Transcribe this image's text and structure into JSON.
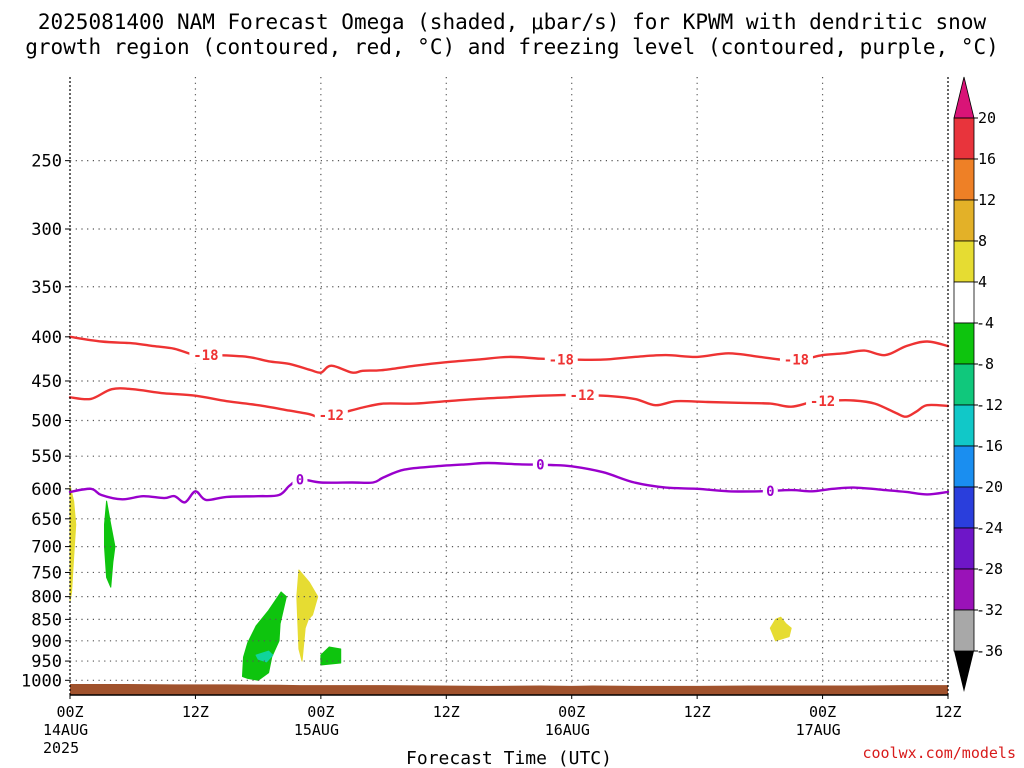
{
  "title_line1": "2025081400 NAM Forecast Omega (shaded, μbar/s) for KPWM with dendritic snow",
  "title_line2": "growth region (contoured, red, °C) and freezing level (contoured, purple, °C)",
  "credit": "coolwx.com/models",
  "chart_data": {
    "type": "contour",
    "title": "2025081400 NAM Forecast Omega (shaded, μbar/s) for KPWM with dendritic snow growth region (contoured, red, °C) and freezing level (contoured, purple, °C)",
    "xlabel": "Forecast Time (UTC)",
    "ylabel": "",
    "x_range_hours": [
      0,
      84
    ],
    "y_range_hPa": [
      200,
      1040
    ],
    "y_scale": "log",
    "grid": true,
    "x_ticks": [
      {
        "hour": 0,
        "line1": "00Z",
        "line2": "14AUG",
        "line3": "2025"
      },
      {
        "hour": 12,
        "line1": "12Z",
        "line2": "",
        "line3": ""
      },
      {
        "hour": 24,
        "line1": "00Z",
        "line2": "15AUG",
        "line3": ""
      },
      {
        "hour": 36,
        "line1": "12Z",
        "line2": "",
        "line3": ""
      },
      {
        "hour": 48,
        "line1": "00Z",
        "line2": "16AUG",
        "line3": ""
      },
      {
        "hour": 60,
        "line1": "12Z",
        "line2": "",
        "line3": ""
      },
      {
        "hour": 72,
        "line1": "00Z",
        "line2": "17AUG",
        "line3": ""
      },
      {
        "hour": 84,
        "line1": "12Z",
        "line2": "",
        "line3": ""
      }
    ],
    "y_ticks": [
      250,
      300,
      350,
      400,
      450,
      500,
      550,
      600,
      650,
      700,
      750,
      800,
      850,
      900,
      950,
      1000
    ],
    "contours": [
      {
        "label": "-18",
        "color": "#ee3333",
        "label_hours": [
          13,
          47,
          69.5
        ],
        "points": [
          [
            0,
            400
          ],
          [
            3,
            405
          ],
          [
            6,
            407
          ],
          [
            8,
            410
          ],
          [
            10,
            413
          ],
          [
            12,
            420
          ],
          [
            14,
            420
          ],
          [
            17,
            422
          ],
          [
            19,
            427
          ],
          [
            21,
            430
          ],
          [
            23,
            437
          ],
          [
            24,
            440
          ],
          [
            25,
            432
          ],
          [
            27,
            440
          ],
          [
            28,
            438
          ],
          [
            30,
            437
          ],
          [
            33,
            432
          ],
          [
            36,
            428
          ],
          [
            39,
            425
          ],
          [
            42,
            422
          ],
          [
            45,
            424
          ],
          [
            48,
            425
          ],
          [
            51,
            425
          ],
          [
            54,
            422
          ],
          [
            57,
            420
          ],
          [
            60,
            422
          ],
          [
            63,
            418
          ],
          [
            66,
            422
          ],
          [
            68,
            425
          ],
          [
            70,
            425
          ],
          [
            72,
            420
          ],
          [
            74,
            418
          ],
          [
            76,
            415
          ],
          [
            78,
            420
          ],
          [
            80,
            410
          ],
          [
            82,
            405
          ],
          [
            84,
            410
          ]
        ]
      },
      {
        "label": "-12",
        "color": "#ee3333",
        "label_hours": [
          25,
          49,
          72
        ],
        "points": [
          [
            0,
            470
          ],
          [
            2,
            472
          ],
          [
            4,
            460
          ],
          [
            6,
            460
          ],
          [
            9,
            465
          ],
          [
            12,
            468
          ],
          [
            15,
            475
          ],
          [
            18,
            480
          ],
          [
            21,
            487
          ],
          [
            23,
            492
          ],
          [
            24,
            496
          ],
          [
            26,
            490
          ],
          [
            28,
            483
          ],
          [
            30,
            478
          ],
          [
            33,
            478
          ],
          [
            36,
            475
          ],
          [
            39,
            472
          ],
          [
            42,
            470
          ],
          [
            45,
            468
          ],
          [
            48,
            467
          ],
          [
            51,
            468
          ],
          [
            54,
            472
          ],
          [
            56,
            480
          ],
          [
            58,
            475
          ],
          [
            61,
            476
          ],
          [
            64,
            477
          ],
          [
            67,
            478
          ],
          [
            69,
            482
          ],
          [
            71,
            476
          ],
          [
            73,
            474
          ],
          [
            75,
            474
          ],
          [
            77,
            478
          ],
          [
            79,
            490
          ],
          [
            80,
            495
          ],
          [
            81,
            488
          ],
          [
            82,
            480
          ],
          [
            84,
            481
          ]
        ]
      },
      {
        "label": "0",
        "color": "#9900cc",
        "label_hours": [
          22,
          45,
          67
        ],
        "points": [
          [
            0,
            605
          ],
          [
            2,
            600
          ],
          [
            3,
            610
          ],
          [
            5,
            617
          ],
          [
            7,
            612
          ],
          [
            9,
            615
          ],
          [
            10,
            612
          ],
          [
            11,
            622
          ],
          [
            12,
            604
          ],
          [
            13,
            618
          ],
          [
            15,
            613
          ],
          [
            18,
            612
          ],
          [
            20,
            610
          ],
          [
            21,
            595
          ],
          [
            22,
            585
          ],
          [
            24,
            590
          ],
          [
            27,
            590
          ],
          [
            29,
            590
          ],
          [
            30,
            582
          ],
          [
            32,
            570
          ],
          [
            35,
            565
          ],
          [
            38,
            562
          ],
          [
            40,
            560
          ],
          [
            43,
            562
          ],
          [
            46,
            563
          ],
          [
            48,
            565
          ],
          [
            51,
            574
          ],
          [
            54,
            590
          ],
          [
            57,
            598
          ],
          [
            60,
            600
          ],
          [
            63,
            604
          ],
          [
            66,
            604
          ],
          [
            69,
            602
          ],
          [
            71,
            604
          ],
          [
            73,
            600
          ],
          [
            75,
            598
          ],
          [
            78,
            602
          ],
          [
            80,
            605
          ],
          [
            82,
            609
          ],
          [
            84,
            605
          ]
        ]
      }
    ],
    "omega_shading": [
      {
        "value_range": [
          4,
          8
        ],
        "color": "#e6dc32",
        "points": [
          [
            0,
            595
          ],
          [
            0.35,
            620
          ],
          [
            0.55,
            660
          ],
          [
            0.35,
            720
          ],
          [
            0.15,
            790
          ],
          [
            0,
            810
          ]
        ]
      },
      {
        "value_range": [
          -8,
          -4
        ],
        "color": "#0ec40e",
        "points": [
          [
            3.5,
            620
          ],
          [
            3.9,
            660
          ],
          [
            4.3,
            700
          ],
          [
            4.1,
            730
          ],
          [
            3.9,
            780
          ],
          [
            3.5,
            760
          ],
          [
            3.3,
            700
          ],
          [
            3.3,
            660
          ]
        ]
      },
      {
        "value_range": [
          -8,
          -4
        ],
        "color": "#0ec40e",
        "points": [
          [
            16.5,
            990
          ],
          [
            16.6,
            940
          ],
          [
            17.0,
            905
          ],
          [
            17.8,
            865
          ],
          [
            19.0,
            830
          ],
          [
            20.2,
            790
          ],
          [
            20.7,
            800
          ],
          [
            20.1,
            860
          ],
          [
            20.0,
            900
          ],
          [
            19.3,
            940
          ],
          [
            19.0,
            980
          ],
          [
            18.0,
            1000
          ],
          [
            17.0,
            995
          ]
        ]
      },
      {
        "value_range": [
          -12,
          -8
        ],
        "color": "#10d49c",
        "points": [
          [
            17.8,
            935
          ],
          [
            19.0,
            925
          ],
          [
            19.4,
            935
          ],
          [
            18.8,
            952
          ],
          [
            18.0,
            945
          ]
        ]
      },
      {
        "value_range": [
          4,
          8
        ],
        "color": "#e6dc32",
        "points": [
          [
            21.9,
            745
          ],
          [
            22.9,
            770
          ],
          [
            23.7,
            800
          ],
          [
            23.2,
            840
          ],
          [
            22.8,
            850
          ],
          [
            22.5,
            870
          ],
          [
            22.2,
            950
          ],
          [
            21.9,
            920
          ],
          [
            21.8,
            860
          ],
          [
            21.7,
            800
          ]
        ]
      },
      {
        "value_range": [
          -8,
          -4
        ],
        "color": "#0ec40e",
        "points": [
          [
            24.0,
            935
          ],
          [
            24.8,
            915
          ],
          [
            25.9,
            920
          ],
          [
            25.9,
            955
          ],
          [
            24.0,
            960
          ]
        ]
      },
      {
        "value_range": [
          4,
          8
        ],
        "color": "#e6dc32",
        "points": [
          [
            67.0,
            870
          ],
          [
            67.5,
            850
          ],
          [
            68.0,
            845
          ],
          [
            68.5,
            860
          ],
          [
            69.0,
            870
          ],
          [
            68.8,
            890
          ],
          [
            67.5,
            900
          ]
        ]
      }
    ],
    "surface_pressure_hPa": [
      [
        0,
        1010
      ],
      [
        5,
        1010
      ],
      [
        10,
        1011
      ],
      [
        15,
        1011
      ],
      [
        20,
        1012
      ],
      [
        22,
        1013
      ],
      [
        25,
        1013
      ],
      [
        30,
        1013
      ],
      [
        35,
        1014
      ],
      [
        40,
        1015
      ],
      [
        45,
        1014
      ],
      [
        48,
        1015
      ],
      [
        50,
        1014
      ],
      [
        55,
        1015
      ],
      [
        60,
        1015
      ],
      [
        65,
        1014
      ],
      [
        70,
        1014
      ],
      [
        75,
        1014
      ],
      [
        80,
        1013
      ],
      [
        84,
        1013
      ]
    ],
    "surface_color": "#a0522d",
    "colorbar": {
      "units": "μbar/s",
      "labels": [
        "20",
        "16",
        "12",
        "8",
        "4",
        "-4",
        "-8",
        "-12",
        "-16",
        "-20",
        "-24",
        "-28",
        "-32",
        "-36"
      ],
      "top_arrow_color": "#d91477",
      "bottom_arrow_color": "#000000",
      "colors": [
        "#e8343c",
        "#ee8026",
        "#e3b128",
        "#e6dc32",
        "#ffffff",
        "#0ec40e",
        "#10c87c",
        "#11c8c8",
        "#1a8ef0",
        "#2a3edc",
        "#6e16c8",
        "#9a12b8",
        "#a8a8a8"
      ]
    }
  }
}
